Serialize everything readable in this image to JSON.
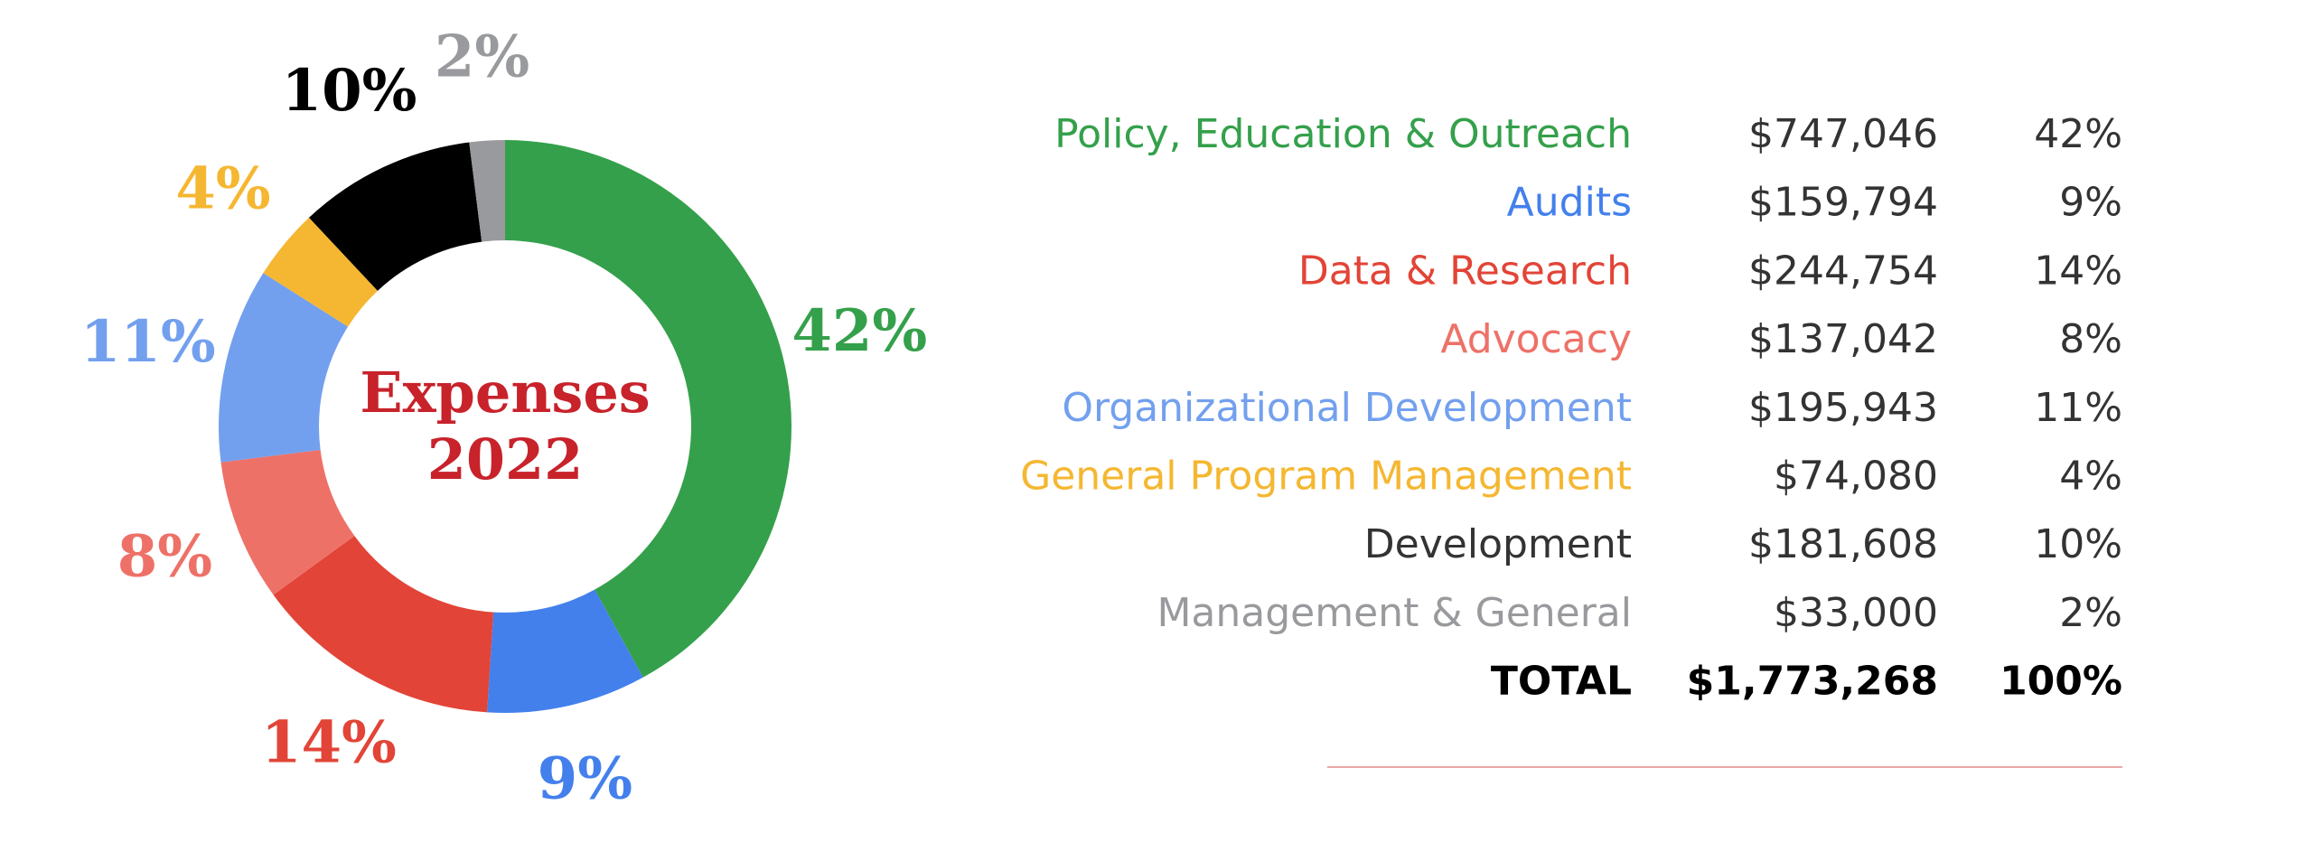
{
  "chart_data": {
    "type": "pie",
    "title": "Expenses",
    "subtitle": "2022",
    "categories": [
      "Policy, Education & Outreach",
      "Audits",
      "Data & Research",
      "Advocacy",
      "Organizational Development",
      "General Program Management",
      "Development",
      "Management & General"
    ],
    "values": [
      42,
      9,
      14,
      8,
      11,
      4,
      10,
      2
    ],
    "value_labels": [
      "42%",
      "9%",
      "14%",
      "8%",
      "11%",
      "4%",
      "10%",
      "2%"
    ],
    "colors": [
      "#34a04b",
      "#4380ec",
      "#e24437",
      "#ee7168",
      "#73a0ee",
      "#f5b731",
      "#000000",
      "#999a9d"
    ],
    "amounts": [
      747046,
      159794,
      244754,
      137042,
      195943,
      74080,
      181608,
      33000
    ],
    "amount_labels": [
      "$747,046",
      "$159,794",
      "$244,754",
      "$137,042",
      "$195,943",
      "$74,080",
      "$181,608",
      "$33,000"
    ],
    "total_name": "TOTAL",
    "total": 1773268,
    "total_label": "$1,773,268",
    "total_percent": 100,
    "total_percent_label": "100%"
  }
}
